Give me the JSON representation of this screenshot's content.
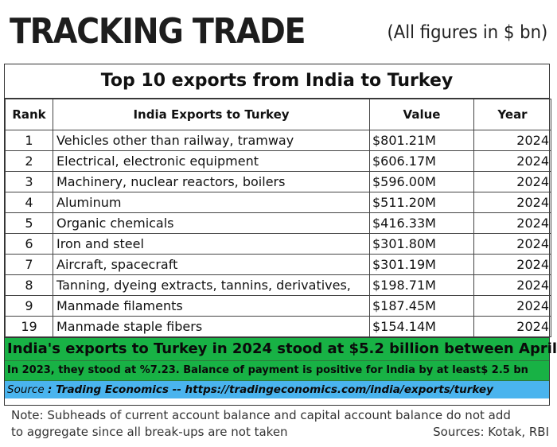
{
  "header": {
    "title": "TRACKING TRADE",
    "units": "(All figures in $ bn)"
  },
  "table": {
    "title": "Top 10 exports from India to Turkey",
    "columns": [
      "Rank",
      "India Exports to Turkey",
      "Value",
      "Year"
    ],
    "rows": [
      {
        "rank": "1",
        "name": "Vehicles other than railway, tramway",
        "value": "$801.21M",
        "year": "2024"
      },
      {
        "rank": "2",
        "name": "Electrical, electronic equipment",
        "value": "$606.17M",
        "year": "2024"
      },
      {
        "rank": "3",
        "name": "Machinery, nuclear reactors, boilers",
        "value": "$596.00M",
        "year": "2024"
      },
      {
        "rank": "4",
        "name": "Aluminum",
        "value": "$511.20M",
        "year": "2024"
      },
      {
        "rank": "5",
        "name": "Organic chemicals",
        "value": "$416.33M",
        "year": "2024"
      },
      {
        "rank": "6",
        "name": "Iron and steel",
        "value": "$301.80M",
        "year": "2024"
      },
      {
        "rank": "7",
        "name": "Aircraft, spacecraft",
        "value": "$301.19M",
        "year": "2024"
      },
      {
        "rank": "8",
        "name": "Tanning, dyeing extracts, tannins, derivatives,",
        "value": "$198.71M",
        "year": "2024"
      },
      {
        "rank": "9",
        "name": "Manmade filaments",
        "value": "$187.45M",
        "year": "2024"
      },
      {
        "rank": "19",
        "name": "Manmade staple fibers",
        "value": "$154.14M",
        "year": "2024"
      }
    ]
  },
  "summary": {
    "line1": "India's exports to Turkey in 2024 stood at  $5.2 billion between April",
    "line2": "In 2023, they stood at %7.23. Balance of payment is positive for India by at least$ 2.5 bn",
    "source_label": "Source ",
    "source_text": ": Trading Economics -- https://tradingeconomics.com/india/exports/turkey"
  },
  "footnote": {
    "note": "Note: Subheads of current account balance and capital account balance do not add",
    "note2": "to aggregate since all break-ups are not taken",
    "sources": "Sources: Kotak, RBI"
  },
  "colors": {
    "green_band": "#18b245",
    "blue_band": "#4ab4ee"
  }
}
